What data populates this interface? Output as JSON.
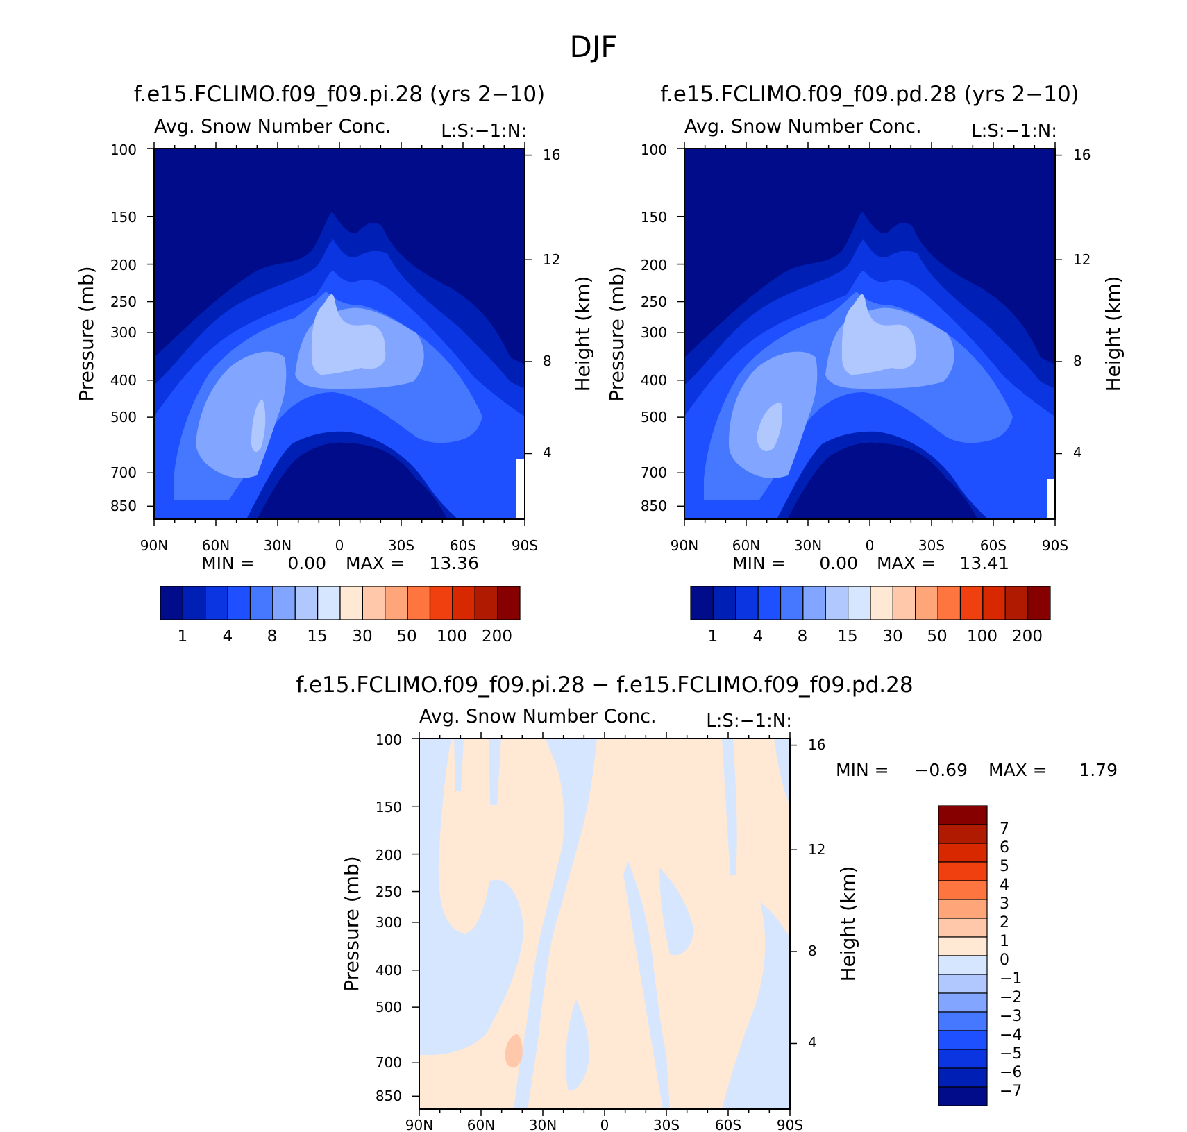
{
  "page_title": "DJF",
  "colors": {
    "abs_scale": [
      "#000c8a",
      "#0020b5",
      "#0a35e0",
      "#1e50ff",
      "#4578ff",
      "#82a5ff",
      "#b1c8ff",
      "#d6e6ff",
      "#ffe9d5",
      "#ffc8aa",
      "#ffa57a",
      "#ff7540",
      "#f04010",
      "#d82800",
      "#b01a00",
      "#860000"
    ],
    "diff_scale": [
      "#000c8a",
      "#0020b5",
      "#0a35e0",
      "#1e50ff",
      "#4578ff",
      "#82a5ff",
      "#b1c8ff",
      "#d6e6ff",
      "#ffe9d5",
      "#ffc8aa",
      "#ffa57a",
      "#ff7540",
      "#f04010",
      "#d82800",
      "#b01a00",
      "#860000"
    ]
  },
  "chart_data": [
    {
      "type": "heatmap",
      "title": "f.e15.FCLIMO.f09_f09.pi.28 (yrs 2−10)",
      "subtitle": "Avg. Snow Number Conc.",
      "units_label": "L:S:−1:N:",
      "xlabel": "",
      "ylabel": "Pressure (mb)",
      "ylabel_right": "Height (km)",
      "x_ticks": [
        "90N",
        "60N",
        "30N",
        "0",
        "30S",
        "60S",
        "90S"
      ],
      "y_ticks": [
        "100",
        "150",
        "200",
        "250",
        "300",
        "400",
        "500",
        "700",
        "850"
      ],
      "y_right_ticks": [
        "16",
        "12",
        "8",
        "4"
      ],
      "min_label": "MIN =",
      "min_value": "0.00",
      "max_label": "MAX =",
      "max_value": "13.36",
      "colorbar_labels": [
        "1",
        "4",
        "8",
        "15",
        "30",
        "50",
        "100",
        "200"
      ],
      "log_pressure_axis": true
    },
    {
      "type": "heatmap",
      "title": "f.e15.FCLIMO.f09_f09.pd.28 (yrs 2−10)",
      "subtitle": "Avg. Snow Number Conc.",
      "units_label": "L:S:−1:N:",
      "xlabel": "",
      "ylabel": "Pressure (mb)",
      "ylabel_right": "Height (km)",
      "x_ticks": [
        "90N",
        "60N",
        "30N",
        "0",
        "30S",
        "60S",
        "90S"
      ],
      "y_ticks": [
        "100",
        "150",
        "200",
        "250",
        "300",
        "400",
        "500",
        "700",
        "850"
      ],
      "y_right_ticks": [
        "16",
        "12",
        "8",
        "4"
      ],
      "min_label": "MIN =",
      "min_value": "0.00",
      "max_label": "MAX =",
      "max_value": "13.41",
      "colorbar_labels": [
        "1",
        "4",
        "8",
        "15",
        "30",
        "50",
        "100",
        "200"
      ],
      "log_pressure_axis": true
    },
    {
      "type": "heatmap",
      "title": "f.e15.FCLIMO.f09_f09.pi.28 − f.e15.FCLIMO.f09_f09.pd.28",
      "subtitle": "Avg. Snow Number Conc.",
      "units_label": "L:S:−1:N:",
      "xlabel": "",
      "ylabel": "Pressure (mb)",
      "ylabel_right": "Height (km)",
      "x_ticks": [
        "90N",
        "60N",
        "30N",
        "0",
        "30S",
        "60S",
        "90S"
      ],
      "y_ticks": [
        "100",
        "150",
        "200",
        "250",
        "300",
        "400",
        "500",
        "700",
        "850"
      ],
      "y_right_ticks": [
        "16",
        "12",
        "8",
        "4"
      ],
      "min_label": "MIN =",
      "min_value": "−0.69",
      "max_label": "MAX =",
      "max_value": "1.79",
      "colorbar_labels": [
        "7",
        "6",
        "5",
        "4",
        "3",
        "2",
        "1",
        "0",
        "−1",
        "−2",
        "−3",
        "−4",
        "−5",
        "−6",
        "−7"
      ],
      "log_pressure_axis": true
    }
  ]
}
